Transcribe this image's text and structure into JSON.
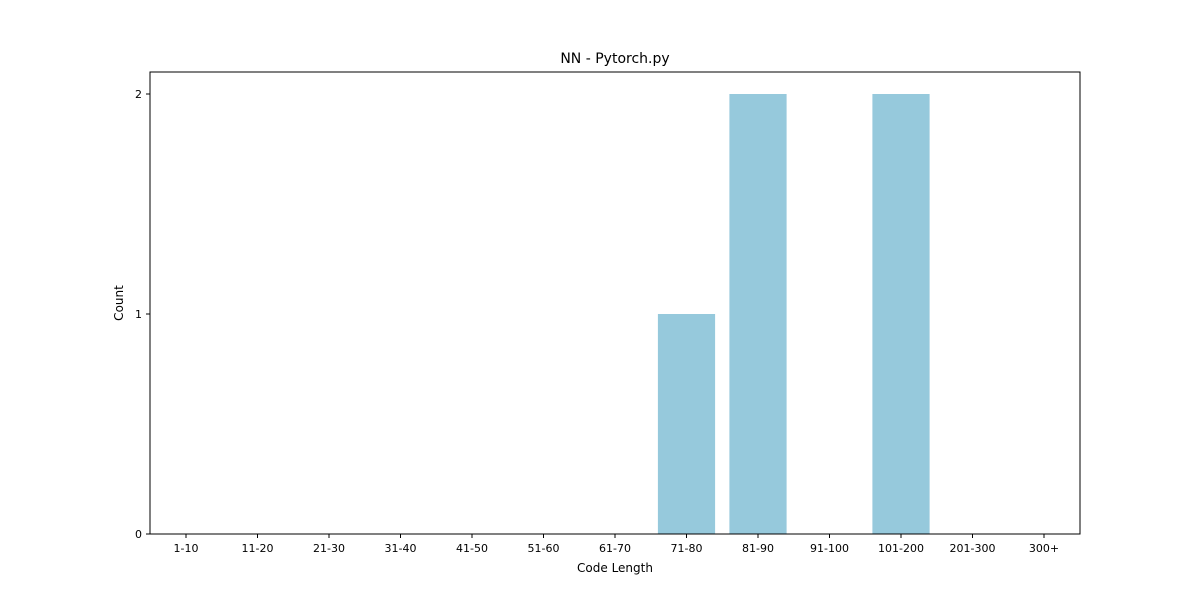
{
  "chart_data": {
    "type": "bar",
    "title": "NN - Pytorch.py",
    "xlabel": "Code Length",
    "ylabel": "Count",
    "categories": [
      "1-10",
      "11-20",
      "21-30",
      "31-40",
      "41-50",
      "51-60",
      "61-70",
      "71-80",
      "81-90",
      "91-100",
      "101-200",
      "201-300",
      "300+"
    ],
    "values": [
      0,
      0,
      0,
      0,
      0,
      0,
      0,
      1,
      2,
      0,
      2,
      0,
      0
    ],
    "yticks": [
      "0",
      "1",
      "2"
    ],
    "ylim": [
      0,
      2.1
    ],
    "bar_color": "#96c9dc",
    "grid": false,
    "legend": "none"
  }
}
